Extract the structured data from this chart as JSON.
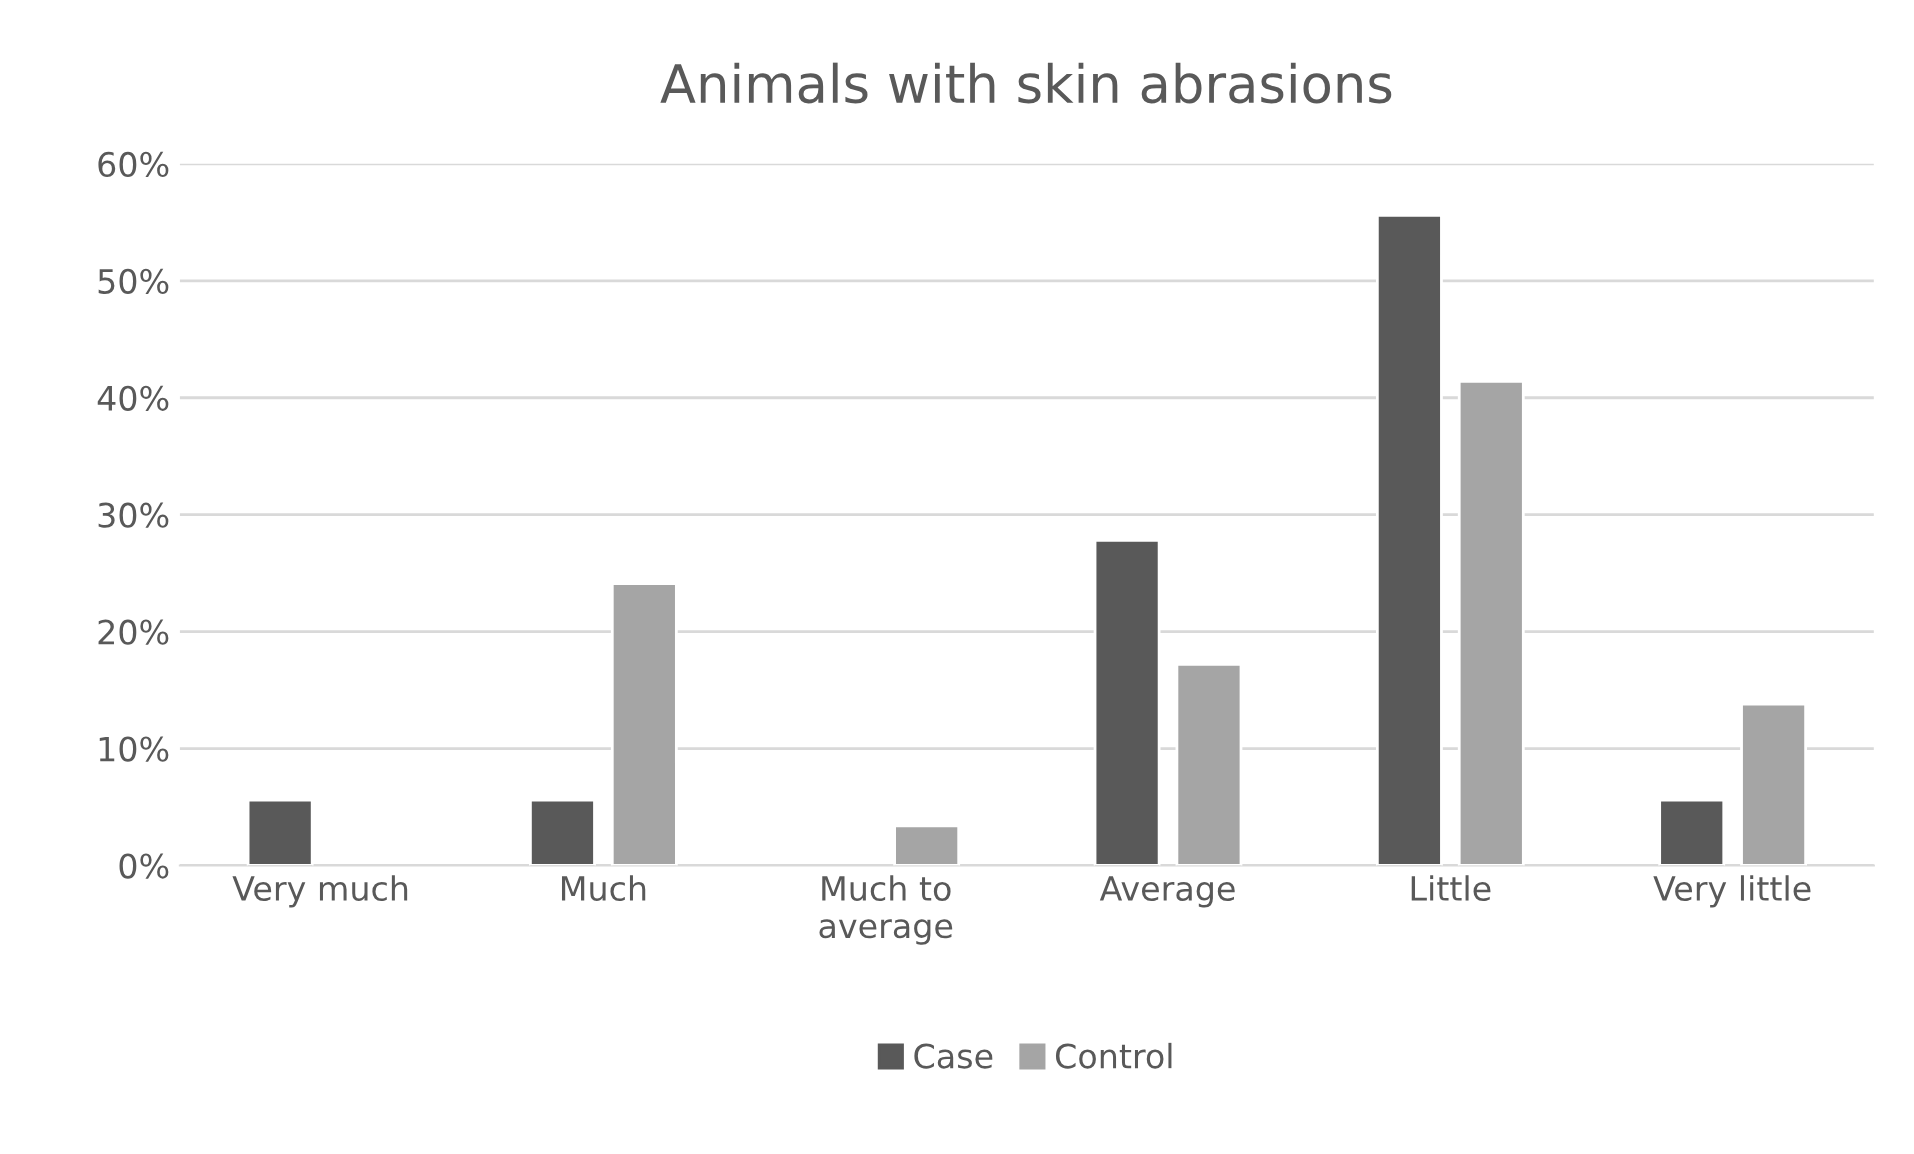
{
  "chart_data": {
    "type": "bar",
    "title": "Animals with skin abrasions",
    "categories": [
      "Very much",
      "Much",
      "Much to average",
      "Average",
      "Little",
      "Very little"
    ],
    "series": [
      {
        "name": "Case",
        "color": "#595959",
        "values": [
          5.6,
          5.6,
          null,
          27.8,
          55.6,
          5.6
        ]
      },
      {
        "name": "Control",
        "color": "#a5a5a5",
        "values": [
          null,
          24.1,
          3.4,
          17.2,
          41.4,
          13.8
        ]
      }
    ],
    "ylim": [
      0,
      60
    ],
    "yticks": [
      {
        "value": 0,
        "label": "0%"
      },
      {
        "value": 10,
        "label": "10%"
      },
      {
        "value": 20,
        "label": "20%"
      },
      {
        "value": 30,
        "label": "30%"
      },
      {
        "value": 40,
        "label": "40%"
      },
      {
        "value": 50,
        "label": "50%"
      },
      {
        "value": 60,
        "label": "60%"
      }
    ],
    "grid": "y",
    "legend": "bottom"
  }
}
